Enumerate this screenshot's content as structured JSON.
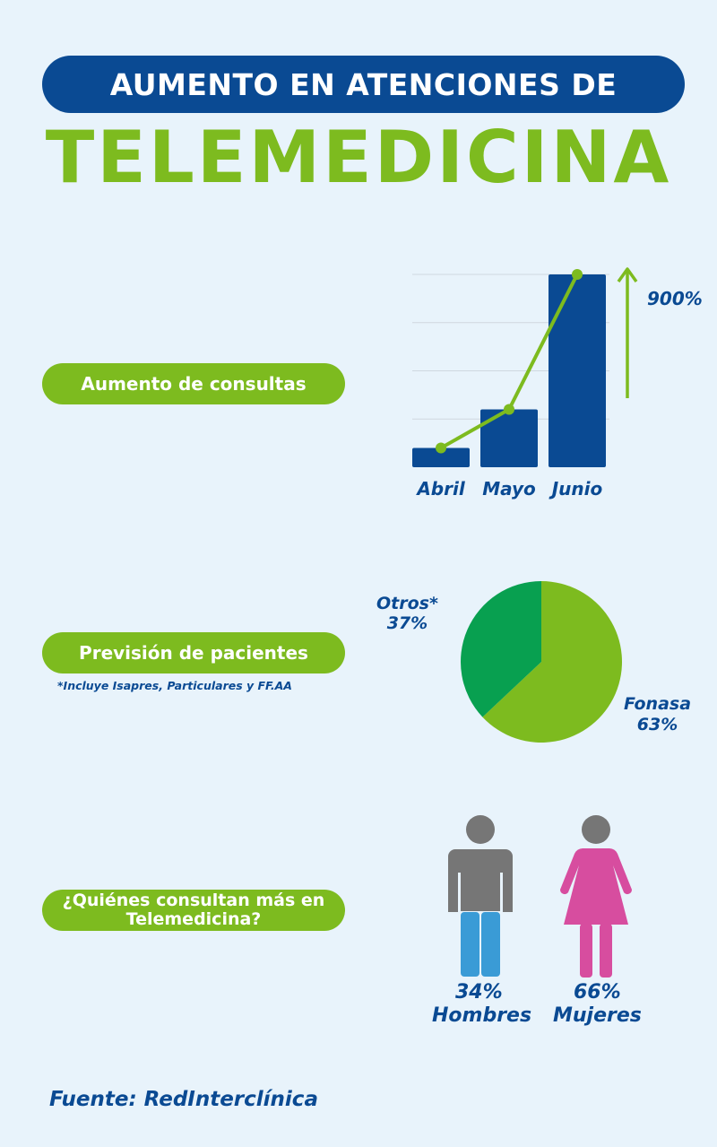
{
  "header": {
    "line1": "AUMENTO EN ATENCIONES DE",
    "line2": "TELEMEDICINA"
  },
  "sections": {
    "consultas": {
      "label": "Aumento de consultas"
    },
    "prevision": {
      "label": "Previsión de pacientes",
      "note": "*Incluye Isapres, Particulares y FF.AA"
    },
    "quienes": {
      "label_line1": "¿Quiénes consultan más en",
      "label_line2": "Telemedicina?"
    }
  },
  "chart_data": [
    {
      "type": "bar",
      "categories": [
        "Abril",
        "Mayo",
        "Junio"
      ],
      "values": [
        10,
        30,
        100
      ],
      "ylim": [
        0,
        100
      ],
      "annotation": "900%",
      "grid": true,
      "colors": {
        "bar": "#0a4a93",
        "line": "#7dbb1f",
        "arrow": "#7dbb1f"
      }
    },
    {
      "type": "pie",
      "slices": [
        {
          "label": "Fonasa",
          "value": 63,
          "value_label": "63%",
          "color": "#7dbb1f"
        },
        {
          "label": "Otros*",
          "value": 37,
          "value_label": "37%",
          "color": "#08a050"
        }
      ]
    },
    {
      "type": "pictogram",
      "items": [
        {
          "label": "Hombres",
          "value": 34,
          "value_label": "34%",
          "icon": "man-icon",
          "fill_color": "#3a9bd6",
          "base_color": "#767676"
        },
        {
          "label": "Mujeres",
          "value": 66,
          "value_label": "66%",
          "icon": "woman-icon",
          "color": "#d74d9f",
          "head_color": "#767676"
        }
      ]
    }
  ],
  "footer": {
    "source": "Fuente: RedInterclínica"
  }
}
